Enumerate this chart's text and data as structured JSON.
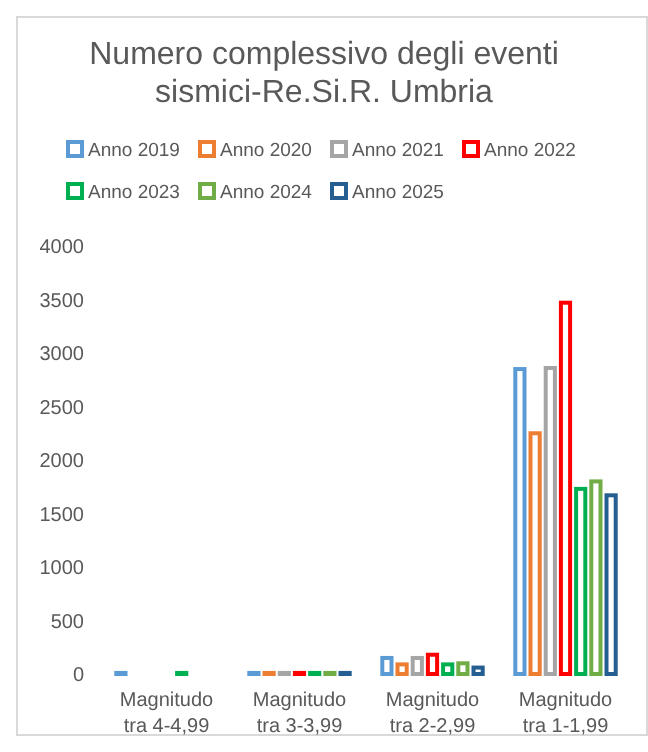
{
  "chart_data": {
    "type": "bar",
    "title": "Numero complessivo degli eventi sismici-Re.Si.R. Umbria",
    "categories": [
      "Magnitudo tra 4-4,99",
      "Magnitudo tra 3-3,99",
      "Magnitudo tra 2-2,99",
      "Magnitudo tra 1-1,99"
    ],
    "series": [
      {
        "name": "Anno 2019",
        "color": "#5b9bd5",
        "values": [
          10,
          10,
          150,
          2850
        ]
      },
      {
        "name": "Anno 2020",
        "color": "#ed7d31",
        "values": [
          null,
          10,
          90,
          2250
        ]
      },
      {
        "name": "Anno 2021",
        "color": "#a5a5a5",
        "values": [
          null,
          10,
          150,
          2860
        ]
      },
      {
        "name": "Anno 2022",
        "color": "#ff0000",
        "values": [
          null,
          10,
          180,
          3470
        ]
      },
      {
        "name": "Anno 2023",
        "color": "#00b050",
        "values": [
          10,
          10,
          90,
          1730
        ]
      },
      {
        "name": "Anno 2024",
        "color": "#70ad47",
        "values": [
          null,
          10,
          100,
          1800
        ]
      },
      {
        "name": "Anno 2025",
        "color": "#255e91",
        "values": [
          null,
          10,
          60,
          1670
        ]
      }
    ],
    "ylim": [
      0,
      4000
    ],
    "yticks": [
      0,
      500,
      1000,
      1500,
      2000,
      2500,
      3000,
      3500,
      4000
    ],
    "grid": false,
    "legend": "top"
  }
}
